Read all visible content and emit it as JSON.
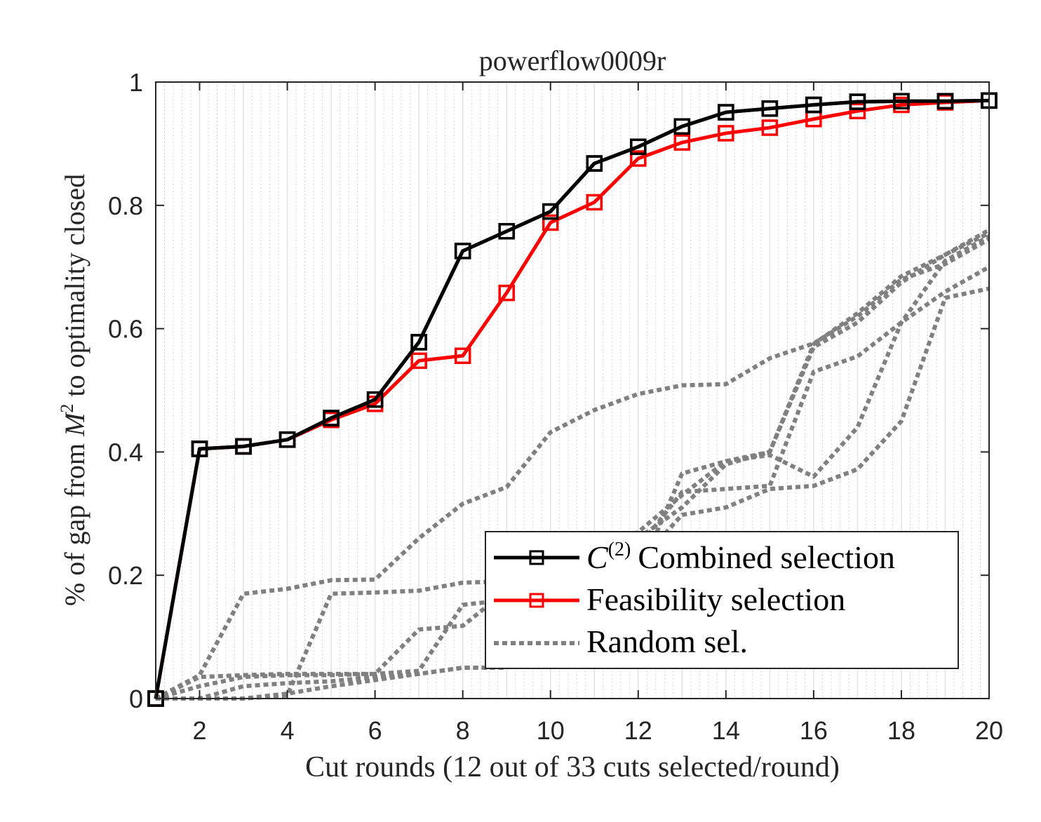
{
  "chart_data": {
    "type": "line",
    "title": "powerflow0009r",
    "xlabel": "Cut rounds (12 out of 33 cuts selected/round)",
    "ylabel_parts": [
      "% of gap from ",
      "M",
      "2",
      " to optimality closed"
    ],
    "xlim": [
      1,
      20
    ],
    "ylim": [
      0,
      1
    ],
    "xticks": [
      2,
      4,
      6,
      8,
      10,
      12,
      14,
      16,
      18,
      20
    ],
    "yticks": [
      0,
      0.2,
      0.4,
      0.6,
      0.8,
      1
    ],
    "ytick_labels": [
      "0",
      "0.2",
      "0.4",
      "0.6",
      "0.8",
      "1"
    ],
    "x": [
      1,
      2,
      3,
      4,
      5,
      6,
      7,
      8,
      9,
      10,
      11,
      12,
      13,
      14,
      15,
      16,
      17,
      18,
      19,
      20
    ],
    "grid": "vertical",
    "legend_position": "bottom-right",
    "series": [
      {
        "name": "Combined selection",
        "name_prefix": "C",
        "name_superscript": "(2)",
        "color": "#000000",
        "marker": "square",
        "style": "solid",
        "values": [
          0,
          0.405,
          0.409,
          0.42,
          0.455,
          0.485,
          0.578,
          0.726,
          0.758,
          0.79,
          0.868,
          0.895,
          0.928,
          0.951,
          0.957,
          0.963,
          0.968,
          0.969,
          0.969,
          0.97
        ]
      },
      {
        "name": "Feasibility selection",
        "color": "#ff0000",
        "marker": "square",
        "style": "solid",
        "values": [
          0,
          0.405,
          0.409,
          0.42,
          0.452,
          0.478,
          0.548,
          0.556,
          0.658,
          0.772,
          0.805,
          0.876,
          0.902,
          0.917,
          0.926,
          0.94,
          0.953,
          0.963,
          0.967,
          0.97
        ]
      },
      {
        "name": "Random sel.",
        "color": "#808080",
        "style": "dotted",
        "values": [
          0,
          0.035,
          0.038,
          0.04,
          0.04,
          0.04,
          0.112,
          0.118,
          0.175,
          0.225,
          0.24,
          0.26,
          0.31,
          0.38,
          0.4,
          0.57,
          0.61,
          0.675,
          0.72,
          0.76
        ]
      },
      {
        "color": "#808080",
        "style": "dotted",
        "values": [
          0,
          0,
          0,
          0.005,
          0.17,
          0.172,
          0.175,
          0.188,
          0.19,
          0.2,
          0.235,
          0.27,
          0.33,
          0.385,
          0.4,
          0.575,
          0.625,
          0.685,
          0.72,
          0.755
        ]
      },
      {
        "color": "#808080",
        "style": "dotted",
        "values": [
          0,
          0.038,
          0.17,
          0.178,
          0.192,
          0.193,
          0.26,
          0.316,
          0.343,
          0.432,
          0.468,
          0.494,
          0.508,
          0.51,
          0.552,
          0.576,
          0.62,
          0.68,
          0.705,
          0.745
        ]
      },
      {
        "color": "#808080",
        "style": "dotted",
        "values": [
          0,
          0,
          0.02,
          0.025,
          0.028,
          0.035,
          0.04,
          0.05,
          0.05,
          0.12,
          0.19,
          0.22,
          0.298,
          0.31,
          0.34,
          0.345,
          0.372,
          0.45,
          0.65,
          0.665
        ]
      },
      {
        "color": "#808080",
        "style": "dotted",
        "values": [
          0,
          0.02,
          0.035,
          0.038,
          0.038,
          0.04,
          0.045,
          0.152,
          0.16,
          0.19,
          0.215,
          0.245,
          0.335,
          0.34,
          0.345,
          0.53,
          0.555,
          0.61,
          0.66,
          0.7
        ]
      },
      {
        "color": "#808080",
        "style": "dotted",
        "values": [
          0,
          0,
          0,
          0.008,
          0.02,
          0.03,
          0.04,
          0.05,
          0.05,
          0.08,
          0.12,
          0.2,
          0.365,
          0.385,
          0.395,
          0.36,
          0.44,
          0.61,
          0.71,
          0.75
        ]
      }
    ]
  }
}
